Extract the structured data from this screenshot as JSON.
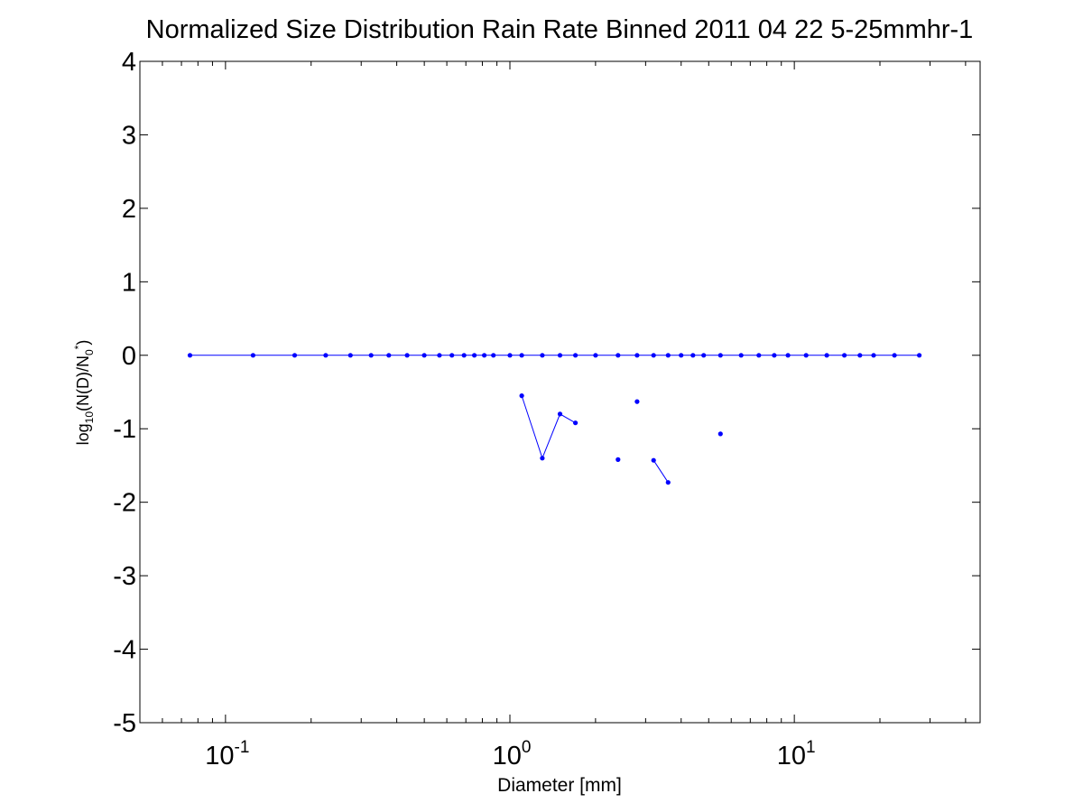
{
  "chart_data": {
    "type": "scatter",
    "title": "Normalized Size Distribution Rain Rate Binned 2011 04 22 5-25mmhr-1",
    "xlabel": "Diameter [mm]",
    "ylabel": {
      "prefix": "log",
      "prefix_sub": "10",
      "middle": "(N(D)/N",
      "middle_sub": "0",
      "suffix_sup": "*",
      "end": ")"
    },
    "xscale": "log",
    "xlim": [
      0.05,
      45
    ],
    "ylim": [
      -5,
      4
    ],
    "yticks": [
      4,
      3,
      2,
      1,
      0,
      -1,
      -2,
      -3,
      -4,
      -5
    ],
    "xticks": [
      {
        "value": 0.1,
        "base": "10",
        "exp": "-1"
      },
      {
        "value": 1,
        "base": "10",
        "exp": "0"
      },
      {
        "value": 10,
        "base": "10",
        "exp": "1"
      }
    ],
    "grid": false,
    "series_color": "#0000ff",
    "series": [
      {
        "values": [
          [
            0.075,
            0
          ],
          [
            0.125,
            0
          ],
          [
            0.175,
            0
          ],
          [
            0.225,
            0
          ],
          [
            0.275,
            0
          ],
          [
            0.325,
            0
          ],
          [
            0.375,
            0
          ],
          [
            0.435,
            0
          ],
          [
            0.5,
            0
          ],
          [
            0.565,
            0
          ],
          [
            0.625,
            0
          ],
          [
            0.69,
            0
          ],
          [
            0.75,
            0
          ],
          [
            0.8125,
            0
          ],
          [
            0.875,
            0
          ],
          [
            1.0,
            0
          ],
          [
            1.1,
            0
          ],
          [
            1.3,
            0
          ],
          [
            1.5,
            0
          ],
          [
            1.7,
            0
          ],
          [
            2.0,
            0
          ],
          [
            2.4,
            0
          ],
          [
            2.8,
            0
          ],
          [
            3.2,
            0
          ],
          [
            3.6,
            0
          ],
          [
            4.0,
            0
          ],
          [
            4.4,
            0
          ],
          [
            4.8,
            0
          ],
          [
            5.5,
            0
          ],
          [
            6.5,
            0
          ],
          [
            7.5,
            0
          ],
          [
            8.5,
            0
          ],
          [
            9.5,
            0
          ],
          [
            11.0,
            0
          ],
          [
            13.0,
            0
          ],
          [
            15.0,
            0
          ],
          [
            17.0,
            0
          ],
          [
            19.0,
            0
          ],
          [
            22.5,
            0
          ],
          [
            27.5,
            0
          ]
        ]
      },
      {
        "values": [
          [
            1.1,
            -0.55
          ],
          [
            1.3,
            -1.4
          ],
          [
            1.5,
            -0.8
          ],
          [
            1.7,
            -0.92
          ]
        ]
      },
      {
        "values": [
          [
            2.4,
            -1.42
          ]
        ]
      },
      {
        "values": [
          [
            2.8,
            -0.63
          ]
        ]
      },
      {
        "values": [
          [
            3.2,
            -1.43
          ],
          [
            3.6,
            -1.73
          ]
        ]
      },
      {
        "values": [
          [
            5.5,
            -1.07
          ]
        ]
      }
    ]
  }
}
